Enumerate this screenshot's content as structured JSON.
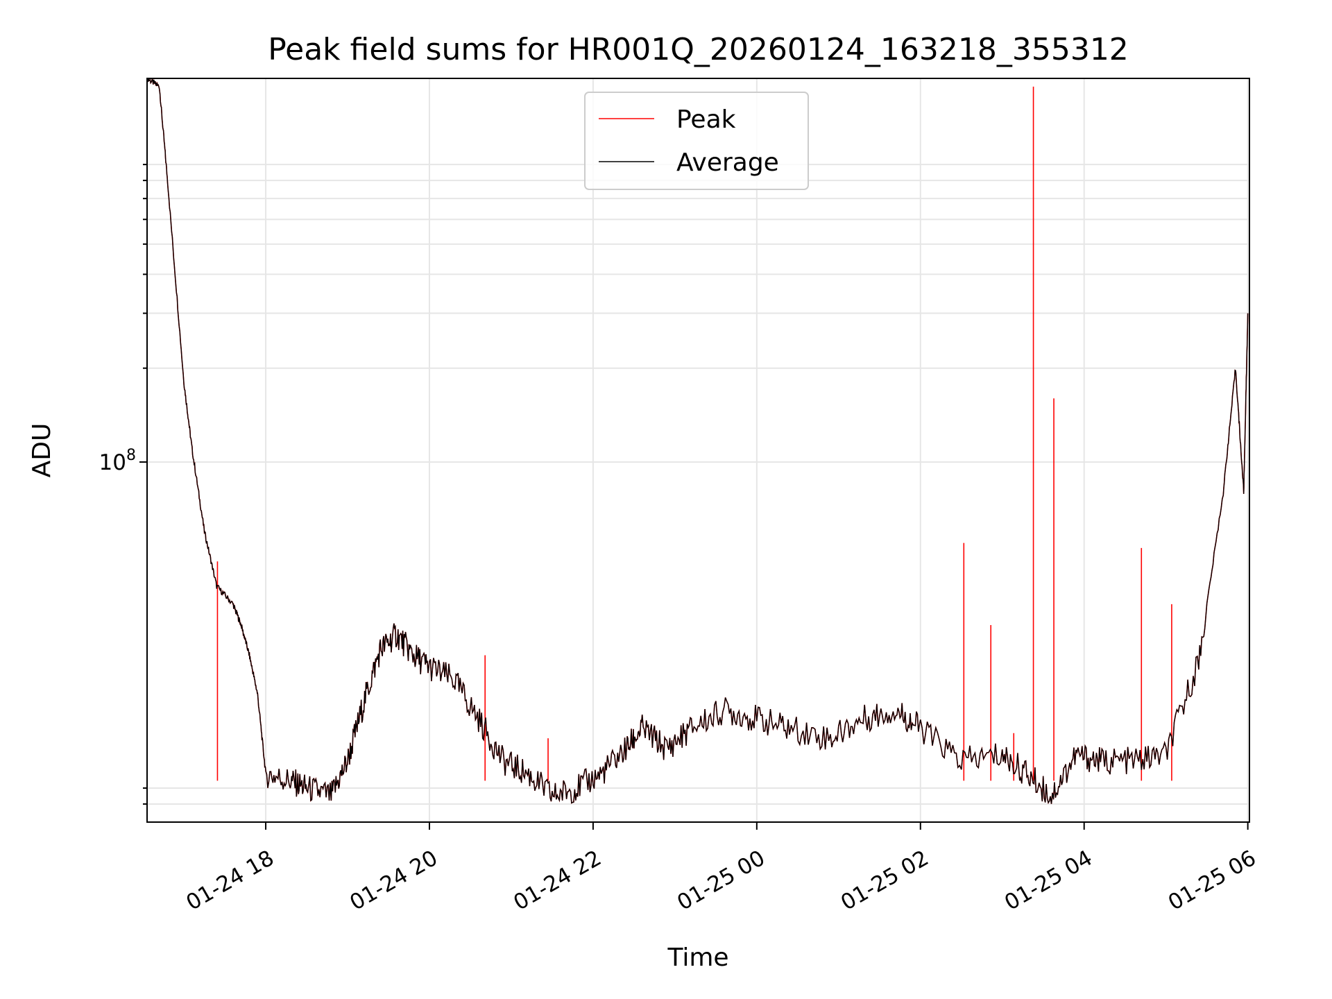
{
  "chart_data": {
    "type": "line",
    "title": "Peak field sums for HR001Q_20260124_163218_355312",
    "xlabel": "Time",
    "ylabel": "ADU",
    "yscale": "log",
    "ylim": [
      7000000,
      1700000000
    ],
    "xlim_hours": [
      -1.45,
      12.02
    ],
    "grid": true,
    "legend_position": "top-center",
    "x_ticks": [
      {
        "label": "01-24 18",
        "hour": 0
      },
      {
        "label": "01-24 20",
        "hour": 2
      },
      {
        "label": "01-24 22",
        "hour": 4
      },
      {
        "label": "01-25 00",
        "hour": 6
      },
      {
        "label": "01-25 02",
        "hour": 8
      },
      {
        "label": "01-25 04",
        "hour": 10
      },
      {
        "label": "01-25 06",
        "hour": 12
      }
    ],
    "y_ticks": [
      {
        "base": "10",
        "exp": "8",
        "value": 100000000
      }
    ],
    "y_minor_ticks": [
      8000000,
      9000000,
      200000000,
      300000000,
      400000000,
      500000000,
      600000000,
      700000000,
      800000000,
      900000000
    ],
    "series": [
      {
        "name": "Peak",
        "color": "#ff0000",
        "points": [
          [
            -1.45,
            1700000000
          ],
          [
            -1.3,
            1600000000
          ],
          [
            -1.2,
            800000000
          ],
          [
            -1.0,
            180000000
          ],
          [
            -0.9,
            110000000
          ],
          [
            -0.75,
            60000000
          ],
          [
            -0.6,
            40000000
          ],
          [
            -0.4,
            35000000
          ],
          [
            -0.3,
            30000000
          ],
          [
            -0.2,
            24000000
          ],
          [
            -0.1,
            18000000
          ],
          [
            0.0,
            10000000
          ],
          [
            0.3,
            9500000
          ],
          [
            0.5,
            9000000
          ],
          [
            0.8,
            8500000
          ],
          [
            1.0,
            11000000
          ],
          [
            1.2,
            17000000
          ],
          [
            1.4,
            25000000
          ],
          [
            1.6,
            28000000
          ],
          [
            1.8,
            24000000
          ],
          [
            2.0,
            22000000
          ],
          [
            2.3,
            20000000
          ],
          [
            2.6,
            15000000
          ],
          [
            2.9,
            11000000
          ],
          [
            3.2,
            10000000
          ],
          [
            3.5,
            8500000
          ],
          [
            3.8,
            9000000
          ],
          [
            4.1,
            10000000
          ],
          [
            4.4,
            12000000
          ],
          [
            4.6,
            14000000
          ],
          [
            4.9,
            12000000
          ],
          [
            5.2,
            14000000
          ],
          [
            5.6,
            16000000
          ],
          [
            6.0,
            15000000
          ],
          [
            6.4,
            14000000
          ],
          [
            6.9,
            13000000
          ],
          [
            7.3,
            15000000
          ],
          [
            7.7,
            16000000
          ],
          [
            8.0,
            14000000
          ],
          [
            8.5,
            11000000
          ],
          [
            9.0,
            11500000
          ],
          [
            9.3,
            10000000
          ],
          [
            9.6,
            8500000
          ],
          [
            9.9,
            11500000
          ],
          [
            10.2,
            11000000
          ],
          [
            10.6,
            11000000
          ],
          [
            11.0,
            11500000
          ],
          [
            11.4,
            23000000
          ],
          [
            11.7,
            80000000
          ],
          [
            11.85,
            200000000
          ],
          [
            11.95,
            80000000
          ],
          [
            12.0,
            300000000
          ]
        ],
        "spikes": [
          {
            "hour": -0.59,
            "value": 48000000
          },
          {
            "hour": 2.68,
            "value": 24000000
          },
          {
            "hour": 3.45,
            "value": 13000000
          },
          {
            "hour": 8.53,
            "value": 55000000
          },
          {
            "hour": 8.86,
            "value": 30000000
          },
          {
            "hour": 9.14,
            "value": 13500000
          },
          {
            "hour": 9.38,
            "value": 1600000000
          },
          {
            "hour": 9.63,
            "value": 160000000
          },
          {
            "hour": 10.7,
            "value": 53000000
          },
          {
            "hour": 11.07,
            "value": 35000000
          }
        ]
      },
      {
        "name": "Average",
        "color": "#000000",
        "points": [
          [
            -1.45,
            1700000000
          ],
          [
            -1.3,
            1600000000
          ],
          [
            -1.2,
            800000000
          ],
          [
            -1.0,
            180000000
          ],
          [
            -0.9,
            110000000
          ],
          [
            -0.75,
            60000000
          ],
          [
            -0.6,
            40000000
          ],
          [
            -0.4,
            35000000
          ],
          [
            -0.3,
            30000000
          ],
          [
            -0.2,
            24000000
          ],
          [
            -0.1,
            18000000
          ],
          [
            0.0,
            10000000
          ],
          [
            0.3,
            9500000
          ],
          [
            0.5,
            9000000
          ],
          [
            0.8,
            8500000
          ],
          [
            1.0,
            11000000
          ],
          [
            1.2,
            17000000
          ],
          [
            1.4,
            25000000
          ],
          [
            1.6,
            28000000
          ],
          [
            1.8,
            24000000
          ],
          [
            2.0,
            22000000
          ],
          [
            2.3,
            20000000
          ],
          [
            2.6,
            15000000
          ],
          [
            2.9,
            11000000
          ],
          [
            3.2,
            10000000
          ],
          [
            3.5,
            8500000
          ],
          [
            3.8,
            9000000
          ],
          [
            4.1,
            10000000
          ],
          [
            4.4,
            12000000
          ],
          [
            4.6,
            14000000
          ],
          [
            4.9,
            12000000
          ],
          [
            5.2,
            14000000
          ],
          [
            5.6,
            16000000
          ],
          [
            6.0,
            15000000
          ],
          [
            6.4,
            14000000
          ],
          [
            6.9,
            13000000
          ],
          [
            7.3,
            15000000
          ],
          [
            7.7,
            16000000
          ],
          [
            8.0,
            14000000
          ],
          [
            8.5,
            11000000
          ],
          [
            9.0,
            11500000
          ],
          [
            9.3,
            10000000
          ],
          [
            9.6,
            8500000
          ],
          [
            9.9,
            11500000
          ],
          [
            10.2,
            11000000
          ],
          [
            10.6,
            11000000
          ],
          [
            11.0,
            11500000
          ],
          [
            11.4,
            23000000
          ],
          [
            11.7,
            80000000
          ],
          [
            11.85,
            200000000
          ],
          [
            11.95,
            80000000
          ],
          [
            12.0,
            300000000
          ]
        ]
      }
    ]
  }
}
